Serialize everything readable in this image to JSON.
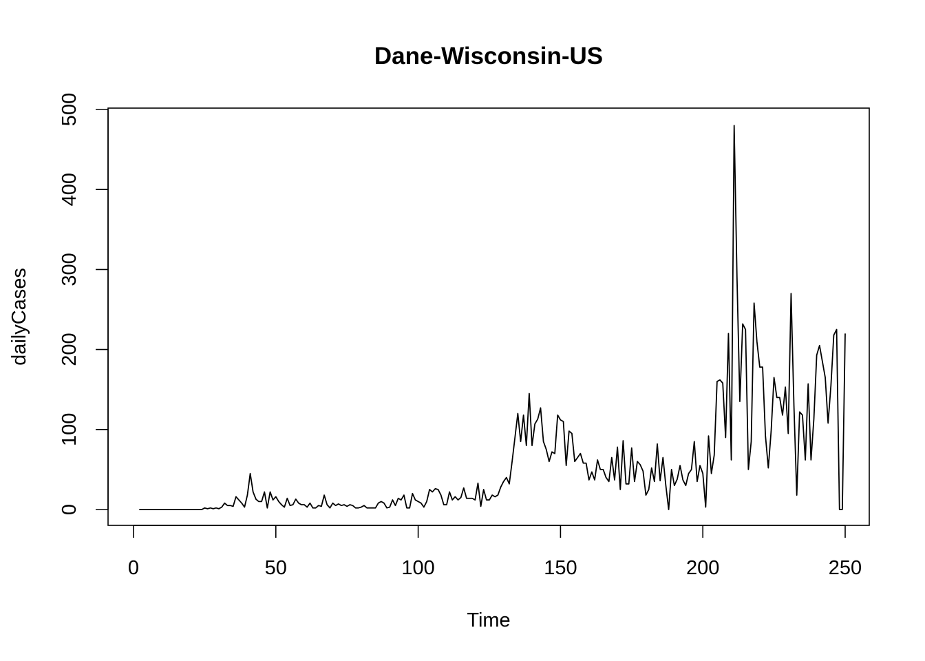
{
  "chart_data": {
    "type": "line",
    "title": "Dane-Wisconsin-US",
    "xlabel": "Time",
    "ylabel": "dailyCases",
    "xlim": [
      1,
      248
    ],
    "ylim": [
      0,
      500
    ],
    "x_ticks": [
      0,
      50,
      100,
      150,
      200,
      250
    ],
    "y_ticks": [
      0,
      100,
      200,
      300,
      400,
      500
    ],
    "grid": false,
    "legend": "none",
    "color": "#000000",
    "series": [
      {
        "x_start": 2,
        "values": [
          0,
          0,
          0,
          0,
          0,
          0,
          0,
          0,
          0,
          0,
          0,
          0,
          0,
          0,
          0,
          0,
          0,
          0,
          0,
          0,
          0,
          0,
          0,
          2,
          1,
          2,
          1,
          2,
          1,
          3,
          8,
          5,
          5,
          4,
          16,
          12,
          8,
          3,
          18,
          45,
          22,
          13,
          10,
          10,
          22,
          2,
          22,
          12,
          16,
          10,
          6,
          3,
          14,
          5,
          6,
          13,
          8,
          6,
          6,
          3,
          8,
          2,
          2,
          5,
          4,
          18,
          6,
          2,
          8,
          5,
          7,
          5,
          6,
          4,
          6,
          5,
          2,
          2,
          3,
          5,
          2,
          2,
          2,
          2,
          8,
          10,
          8,
          2,
          3,
          12,
          5,
          14,
          12,
          18,
          2,
          2,
          20,
          12,
          10,
          8,
          3,
          10,
          25,
          22,
          26,
          25,
          18,
          6,
          6,
          22,
          12,
          16,
          12,
          15,
          27,
          14,
          14,
          14,
          12,
          33,
          4,
          25,
          12,
          12,
          18,
          16,
          18,
          28,
          35,
          40,
          32,
          60,
          90,
          120,
          85,
          118,
          80,
          145,
          80,
          107,
          113,
          127,
          85,
          75,
          60,
          72,
          70,
          118,
          112,
          110,
          55,
          98,
          95,
          60,
          65,
          70,
          58,
          58,
          37,
          47,
          37,
          62,
          50,
          50,
          40,
          35,
          65,
          37,
          78,
          25,
          86,
          32,
          32,
          77,
          35,
          60,
          56,
          48,
          18,
          25,
          52,
          35,
          82,
          36,
          65,
          30,
          0,
          50,
          30,
          38,
          55,
          37,
          30,
          45,
          50,
          85,
          35,
          55,
          45,
          3,
          92,
          45,
          68,
          160,
          162,
          158,
          90,
          220,
          62,
          480,
          290,
          135,
          232,
          225,
          50,
          85,
          258,
          210,
          178,
          178,
          92,
          52,
          98,
          165,
          140,
          140,
          118,
          153,
          95,
          270,
          130,
          18,
          122,
          118,
          62,
          157,
          62,
          113,
          193,
          205,
          185,
          165,
          108,
          155,
          218,
          225,
          0,
          0,
          220
        ]
      }
    ]
  }
}
